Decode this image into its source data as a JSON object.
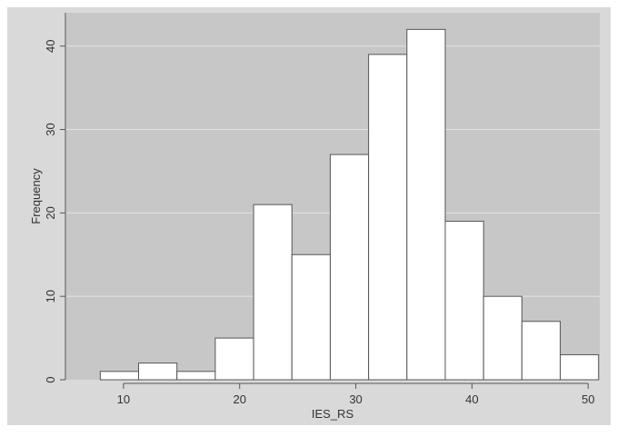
{
  "chart_data": {
    "type": "bar",
    "subtype": "histogram",
    "xlabel": "IES_RS",
    "ylabel": "Frequency",
    "bin_start": 8,
    "bin_width": 3.3,
    "bins": [
      {
        "x0": 8.0,
        "x1": 11.3,
        "value": 1
      },
      {
        "x0": 11.3,
        "x1": 14.6,
        "value": 2
      },
      {
        "x0": 14.6,
        "x1": 17.9,
        "value": 1
      },
      {
        "x0": 17.9,
        "x1": 21.2,
        "value": 5
      },
      {
        "x0": 21.2,
        "x1": 24.5,
        "value": 21
      },
      {
        "x0": 24.5,
        "x1": 27.8,
        "value": 15
      },
      {
        "x0": 27.8,
        "x1": 31.1,
        "value": 27
      },
      {
        "x0": 31.1,
        "x1": 34.4,
        "value": 39
      },
      {
        "x0": 34.4,
        "x1": 37.7,
        "value": 42
      },
      {
        "x0": 37.7,
        "x1": 41.0,
        "value": 19
      },
      {
        "x0": 41.0,
        "x1": 44.3,
        "value": 10
      },
      {
        "x0": 44.3,
        "x1": 47.6,
        "value": 7
      },
      {
        "x0": 47.6,
        "x1": 50.9,
        "value": 3
      }
    ],
    "xlim": [
      5,
      51
    ],
    "ylim": [
      0,
      44
    ],
    "x_ticks": [
      10,
      20,
      30,
      40,
      50
    ],
    "y_ticks": [
      0,
      10,
      20,
      30,
      40
    ],
    "grid": true,
    "colors": {
      "plot_background": "#c7c7c7",
      "outer_background": "#d9d9d9",
      "bar_fill": "#ffffff",
      "bar_stroke": "#555555",
      "grid": "#e4e4e4",
      "axis": "#555555"
    }
  }
}
